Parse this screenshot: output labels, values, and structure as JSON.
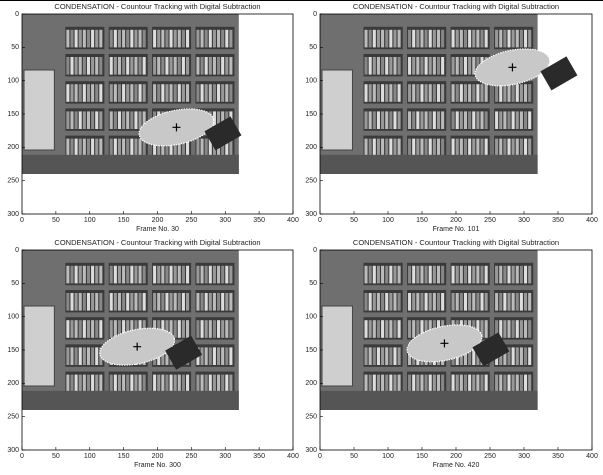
{
  "panels": [
    {
      "title": "CONDENSATION - Countour Tracking with Digital Subtraction",
      "xlabel": "Frame No. 30",
      "xlim": [
        0,
        400
      ],
      "ylim": [
        0,
        300
      ],
      "xticks": [
        0,
        50,
        100,
        150,
        200,
        250,
        300,
        350,
        400
      ],
      "yticks": [
        0,
        50,
        100,
        150,
        200,
        250,
        300
      ],
      "marker": {
        "x": 228,
        "y": 170
      }
    },
    {
      "title": "CONDENSATION - Countour Tracking with Digital Subtraction",
      "xlabel": "Frame No. 101",
      "xlim": [
        0,
        400
      ],
      "ylim": [
        0,
        300
      ],
      "xticks": [
        0,
        50,
        100,
        150,
        200,
        250,
        300,
        350,
        400
      ],
      "yticks": [
        0,
        50,
        100,
        150,
        200,
        250,
        300
      ],
      "marker": {
        "x": 283,
        "y": 80
      }
    },
    {
      "title": "CONDENSATION - Countour Tracking with Digital Subtraction",
      "xlabel": "Frame No. 300",
      "xlim": [
        0,
        400
      ],
      "ylim": [
        0,
        300
      ],
      "xticks": [
        0,
        50,
        100,
        150,
        200,
        250,
        300,
        350,
        400
      ],
      "yticks": [
        0,
        50,
        100,
        150,
        200,
        250,
        300
      ],
      "marker": {
        "x": 170,
        "y": 145
      }
    },
    {
      "title": "CONDENSATION - Countour Tracking with Digital Subtraction",
      "xlabel": "Frame No. 420",
      "xlim": [
        0,
        400
      ],
      "ylim": [
        0,
        300
      ],
      "xticks": [
        0,
        50,
        100,
        150,
        200,
        250,
        300,
        350,
        400
      ],
      "yticks": [
        0,
        50,
        100,
        150,
        200,
        250,
        300
      ],
      "marker": {
        "x": 183,
        "y": 140
      }
    }
  ]
}
